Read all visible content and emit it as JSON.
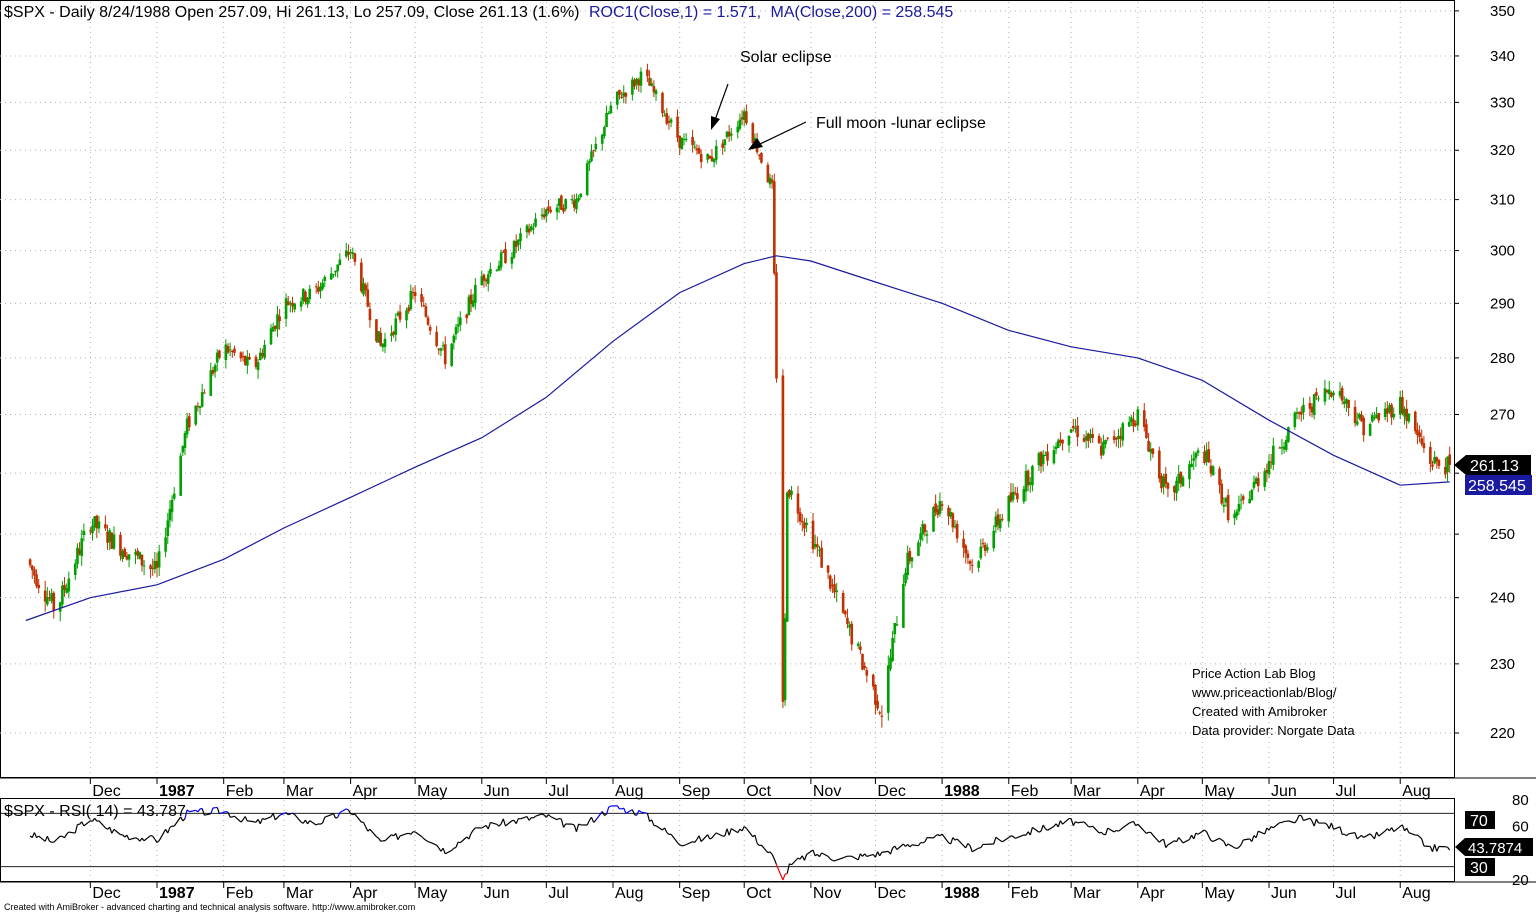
{
  "header": {
    "symbol_line": "$SPX - Daily 8/24/1988 Open 257.09, Hi 261.13, Lo 257.09, Close 261.13 (1.6%)",
    "roc_text": "ROC1(Close,1) = 1.571,",
    "ma_text": "MA(Close,200) = 258.545"
  },
  "rsi_header": "$SPX - RSI( 14) = 43.787",
  "price_badge": "261.13",
  "ma_badge": "258.545",
  "rsi_badge": "43.7874",
  "rsi_level_70": "70",
  "rsi_level_30": "30",
  "annotations": {
    "solar": "Solar eclipse",
    "lunar": "Full moon -lunar eclipse"
  },
  "credits": [
    "Price Action Lab Blog",
    "www.priceactionlab/Blog/",
    "Created with Amibroker",
    "Data provider: Norgate Data"
  ],
  "footer": "Created with AmiBroker - advanced charting and technical analysis software. http://www.amibroker.com",
  "colors": {
    "up_bar": "#00a000",
    "down_bar": "#c03000",
    "ma_line": "#1a1aa0",
    "rsi_line": "#000000",
    "rsi_overbought": "#0000ff",
    "rsi_oversold": "#ff0000",
    "grid": "#b0b0b0"
  },
  "chart_data": [
    {
      "type": "line",
      "title": "$SPX - Daily 8/24/1988",
      "ylim": [
        214,
        352
      ],
      "y_scale": "log",
      "y_ticks": [
        220,
        230,
        240,
        250,
        260,
        270,
        280,
        290,
        300,
        310,
        320,
        330,
        340,
        350
      ],
      "x_ticks": [
        "Dec",
        "1987",
        "Feb",
        "Mar",
        "Apr",
        "May",
        "Jun",
        "Jul",
        "Aug",
        "Sep",
        "Oct",
        "Nov",
        "Dec",
        "1988",
        "Feb",
        "Mar",
        "Apr",
        "May",
        "Jun",
        "Jul",
        "Aug"
      ],
      "x_tick_bold": [
        false,
        true,
        false,
        false,
        false,
        false,
        false,
        false,
        false,
        false,
        false,
        false,
        false,
        true,
        false,
        false,
        false,
        false,
        false,
        false,
        false
      ],
      "grid": true,
      "series": [
        {
          "name": "$SPX",
          "x": [
            "1986-11-01",
            "1986-11-15",
            "1986-12-01",
            "1986-12-15",
            "1987-01-01",
            "1987-01-15",
            "1987-02-01",
            "1987-02-15",
            "1987-03-01",
            "1987-03-15",
            "1987-04-01",
            "1987-04-15",
            "1987-05-01",
            "1987-05-15",
            "1987-06-01",
            "1987-06-15",
            "1987-07-01",
            "1987-07-15",
            "1987-08-01",
            "1987-08-15",
            "1987-09-01",
            "1987-09-15",
            "1987-10-01",
            "1987-10-14",
            "1987-10-19",
            "1987-10-20",
            "1987-10-21",
            "1987-11-01",
            "1987-11-15",
            "1987-12-04",
            "1987-12-15",
            "1988-01-01",
            "1988-01-15",
            "1988-02-01",
            "1988-02-15",
            "1988-03-01",
            "1988-03-15",
            "1988-04-01",
            "1988-04-15",
            "1988-05-01",
            "1988-05-15",
            "1988-06-01",
            "1988-06-15",
            "1988-07-01",
            "1988-07-15",
            "1988-08-01",
            "1988-08-15",
            "1988-08-24"
          ],
          "values": [
            246,
            238,
            252,
            248,
            244,
            268,
            282,
            278,
            290,
            292,
            300,
            282,
            292,
            280,
            295,
            300,
            308,
            310,
            330,
            336,
            322,
            318,
            328,
            312,
            225,
            236,
            258,
            250,
            238,
            223,
            245,
            256,
            245,
            255,
            262,
            268,
            264,
            270,
            256,
            264,
            252,
            262,
            270,
            275,
            268,
            272,
            262,
            261.13
          ]
        },
        {
          "name": "MA(Close,200)",
          "x": [
            "1986-11-01",
            "1986-12-01",
            "1987-01-01",
            "1987-02-01",
            "1987-03-01",
            "1987-04-01",
            "1987-05-01",
            "1987-06-01",
            "1987-07-01",
            "1987-08-01",
            "1987-09-01",
            "1987-10-01",
            "1987-10-16",
            "1987-11-01",
            "1987-12-01",
            "1988-01-01",
            "1988-02-01",
            "1988-03-01",
            "1988-04-01",
            "1988-05-01",
            "1988-06-01",
            "1988-07-01",
            "1988-08-01",
            "1988-08-24"
          ],
          "values": [
            236.5,
            240,
            242,
            246,
            251,
            256,
            261,
            266,
            273,
            283,
            292,
            297.5,
            299,
            298,
            294,
            290,
            285,
            282,
            280,
            276,
            269,
            263,
            258,
            258.545
          ]
        }
      ]
    },
    {
      "type": "line",
      "title": "$SPX - RSI( 14) = 43.787",
      "ylim": [
        20,
        80
      ],
      "y_ticks": [
        20,
        30,
        60,
        70,
        80
      ],
      "levels": [
        30,
        70
      ],
      "x_ticks": [
        "Dec",
        "1987",
        "Feb",
        "Mar",
        "Apr",
        "May",
        "Jun",
        "Jul",
        "Aug",
        "Sep",
        "Oct",
        "Nov",
        "Dec",
        "1988",
        "Feb",
        "Mar",
        "Apr",
        "May",
        "Jun",
        "Jul",
        "Aug"
      ],
      "series": [
        {
          "name": "RSI( 14)",
          "x": [
            "1986-11-01",
            "1986-11-15",
            "1986-12-01",
            "1986-12-15",
            "1987-01-01",
            "1987-01-15",
            "1987-02-01",
            "1987-02-15",
            "1987-03-01",
            "1987-03-15",
            "1987-04-01",
            "1987-04-15",
            "1987-05-01",
            "1987-05-15",
            "1987-06-01",
            "1987-06-15",
            "1987-07-01",
            "1987-07-15",
            "1987-08-01",
            "1987-08-15",
            "1987-09-01",
            "1987-09-15",
            "1987-10-01",
            "1987-10-14",
            "1987-10-19",
            "1987-10-22",
            "1987-11-01",
            "1987-11-15",
            "1987-12-04",
            "1987-12-15",
            "1988-01-01",
            "1988-01-15",
            "1988-02-01",
            "1988-02-15",
            "1988-03-01",
            "1988-03-15",
            "1988-04-01",
            "1988-04-15",
            "1988-05-01",
            "1988-05-15",
            "1988-06-01",
            "1988-06-15",
            "1988-07-01",
            "1988-07-15",
            "1988-08-01",
            "1988-08-15",
            "1988-08-24"
          ],
          "values": [
            55,
            48,
            66,
            54,
            50,
            70,
            72,
            62,
            70,
            62,
            72,
            48,
            58,
            42,
            60,
            64,
            68,
            58,
            75,
            70,
            48,
            52,
            60,
            38,
            20,
            30,
            40,
            36,
            40,
            46,
            52,
            44,
            52,
            58,
            64,
            56,
            62,
            46,
            56,
            44,
            58,
            66,
            60,
            50,
            60,
            44,
            43.787
          ]
        }
      ]
    }
  ]
}
